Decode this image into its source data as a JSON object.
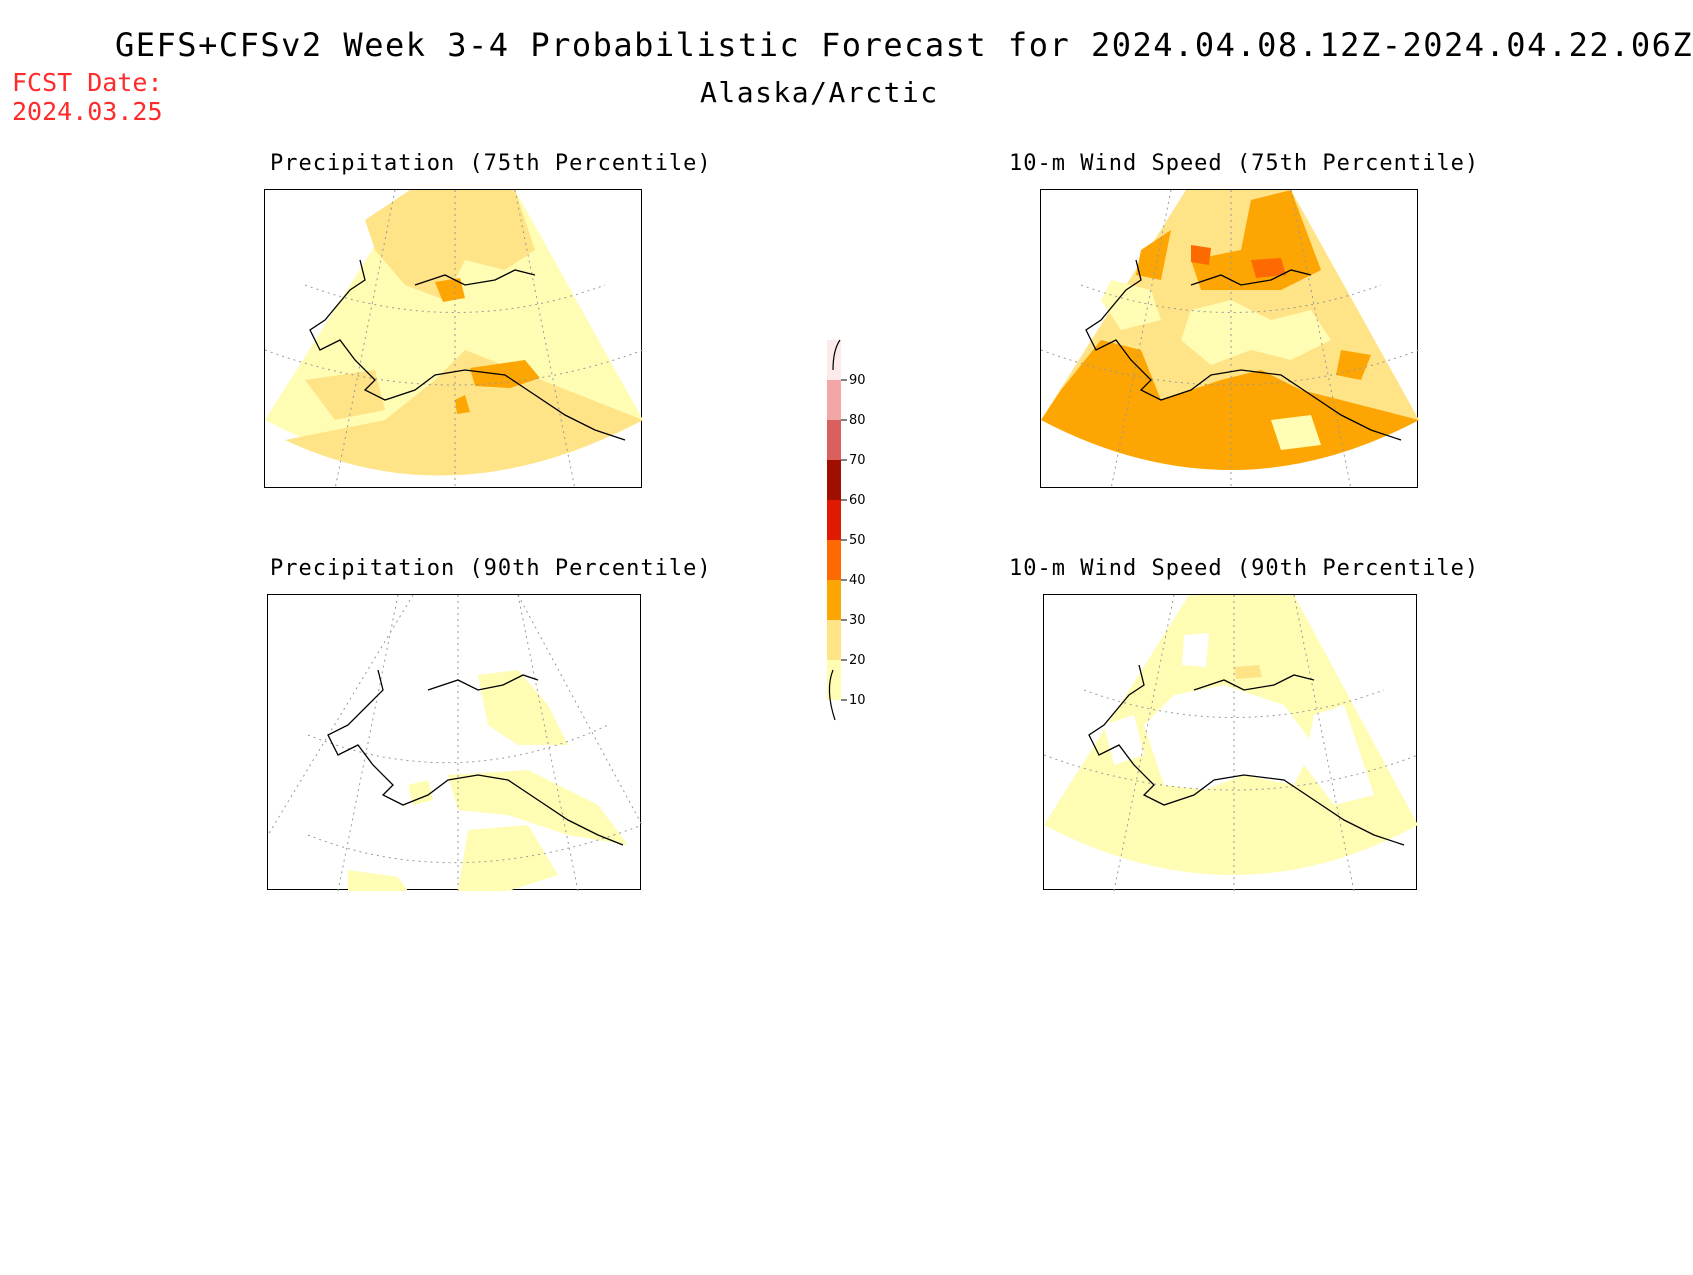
{
  "header": {
    "title": "GEFS+CFSv2 Week 3-4 Probabilistic Forecast for 2024.04.08.12Z-2024.04.22.06Z",
    "region": "Alaska/Arctic",
    "fcst_date_label": "FCST Date:",
    "fcst_date_value": "2024.03.25"
  },
  "panels": {
    "precip75": {
      "title": "Precipitation (75th Percentile)"
    },
    "wind75": {
      "title": "10-m Wind Speed (75th Percentile)"
    },
    "precip90": {
      "title": "Precipitation (90th Percentile)"
    },
    "wind90": {
      "title": "10-m Wind Speed (90th Percentile)"
    }
  },
  "colorbar": {
    "levels": [
      "10",
      "20",
      "30",
      "40",
      "50",
      "60",
      "70",
      "80",
      "90"
    ],
    "colors": [
      "#fffcb4",
      "#fee387",
      "#fda502",
      "#fd6a02",
      "#e01a00",
      "#a00e00",
      "#da5f5f",
      "#f2a6a6",
      "#fdebeb"
    ]
  }
}
